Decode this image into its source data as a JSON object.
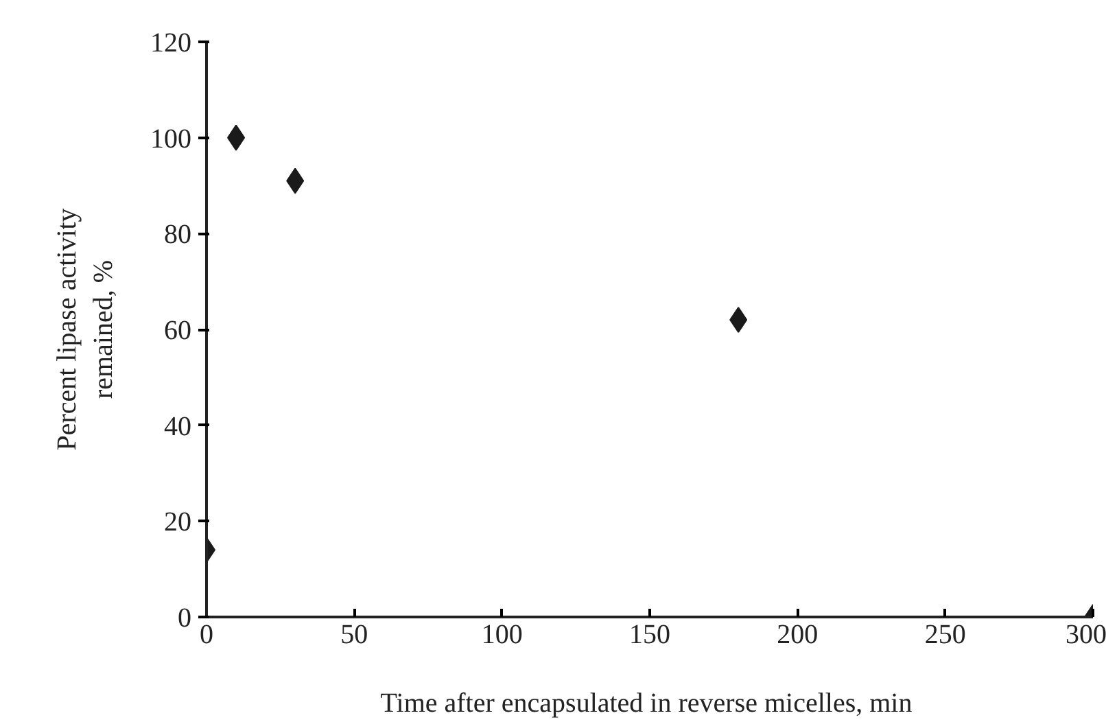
{
  "chart_data": {
    "type": "scatter",
    "xlabel": "Time after encapsulated  in reverse micelles, min",
    "ylabel": "Percent lipase activity\nremained, %",
    "x": [
      0,
      10,
      30,
      180,
      300
    ],
    "values": [
      14,
      100,
      91,
      62,
      0
    ],
    "color": "#1a1a1a",
    "marker": "diamond",
    "xlim": [
      0,
      300
    ],
    "xticks": [
      0,
      50,
      100,
      150,
      200,
      250,
      300
    ],
    "ylim": [
      0,
      120
    ],
    "yticks": [
      0,
      20,
      40,
      60,
      80,
      100,
      120
    ],
    "grid": false
  }
}
